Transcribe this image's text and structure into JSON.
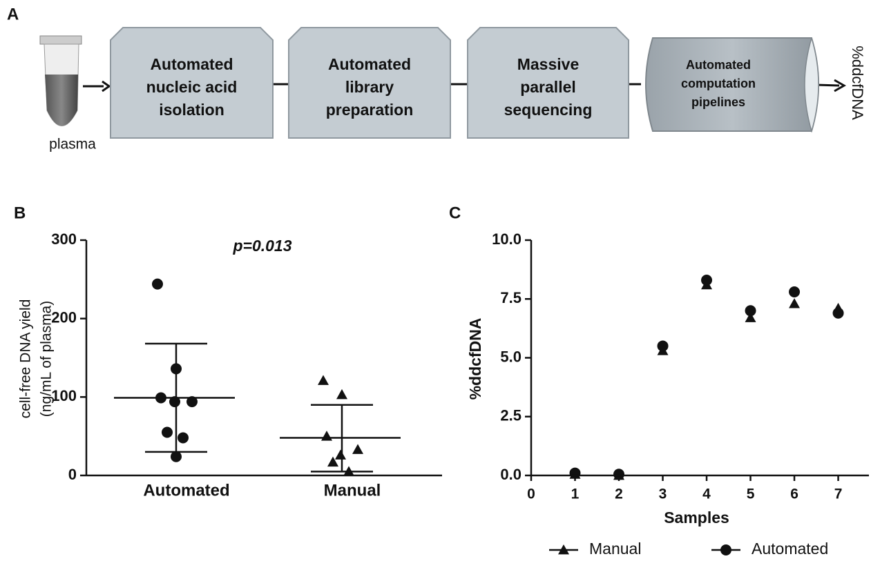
{
  "diagram": {
    "panel_label": "A",
    "input": "plasma",
    "steps": [
      [
        "Automated",
        "nucleic acid",
        "isolation"
      ],
      [
        "Automated",
        "library",
        "preparation"
      ],
      [
        "Massive",
        "parallel",
        "sequencing"
      ],
      [
        "Automated",
        "computation",
        "pipelines"
      ]
    ],
    "output": "%ddcfDNA"
  },
  "chart_data": [
    {
      "type": "dotplot",
      "panel_label": "B",
      "ylabel": [
        "cell-free DNA yield",
        "(ng/mL of plasma)"
      ],
      "annotation": "p=0.013",
      "categories": [
        "Automated",
        "Manual"
      ],
      "groups": [
        {
          "marker": "circle",
          "color": "#111111",
          "values": [
            244,
            136,
            99,
            94,
            94,
            55,
            48,
            24
          ]
        },
        {
          "marker": "triangle",
          "color": "#111111",
          "values": [
            121,
            103,
            50,
            33,
            26,
            17,
            5
          ]
        }
      ],
      "errors": [
        {
          "mean": 99,
          "upper": 168,
          "lower": 30
        },
        {
          "mean": 48,
          "upper": 90,
          "lower": 5
        }
      ],
      "ylim": [
        0,
        300
      ],
      "yticks": [
        0,
        100,
        200,
        300
      ]
    },
    {
      "type": "scatter",
      "panel_label": "C",
      "xlabel": "Samples",
      "ylabel": "%ddcfDNA",
      "x": [
        1,
        2,
        3,
        4,
        5,
        6,
        7
      ],
      "series": [
        {
          "name": "Manual",
          "marker": "triangle",
          "color": "#111111",
          "values": [
            0.05,
            0,
            5.3,
            8.1,
            6.7,
            7.3,
            7.1
          ]
        },
        {
          "name": "Automated",
          "marker": "circle",
          "color": "#111111",
          "values": [
            0.1,
            0.05,
            5.5,
            8.3,
            7.0,
            7.8,
            6.9
          ]
        }
      ],
      "xlim": [
        0,
        7.7
      ],
      "xticks": [
        0,
        1,
        2,
        3,
        4,
        5,
        6,
        7
      ],
      "ylim": [
        0,
        10
      ],
      "yticks": [
        {
          "value": 0,
          "label": "0.0"
        },
        {
          "value": 2.5,
          "label": "2.5"
        },
        {
          "value": 5,
          "label": "5.0"
        },
        {
          "value": 7.5,
          "label": "7.5"
        },
        {
          "value": 10,
          "label": "10.0"
        }
      ],
      "legend": "bottom"
    }
  ]
}
